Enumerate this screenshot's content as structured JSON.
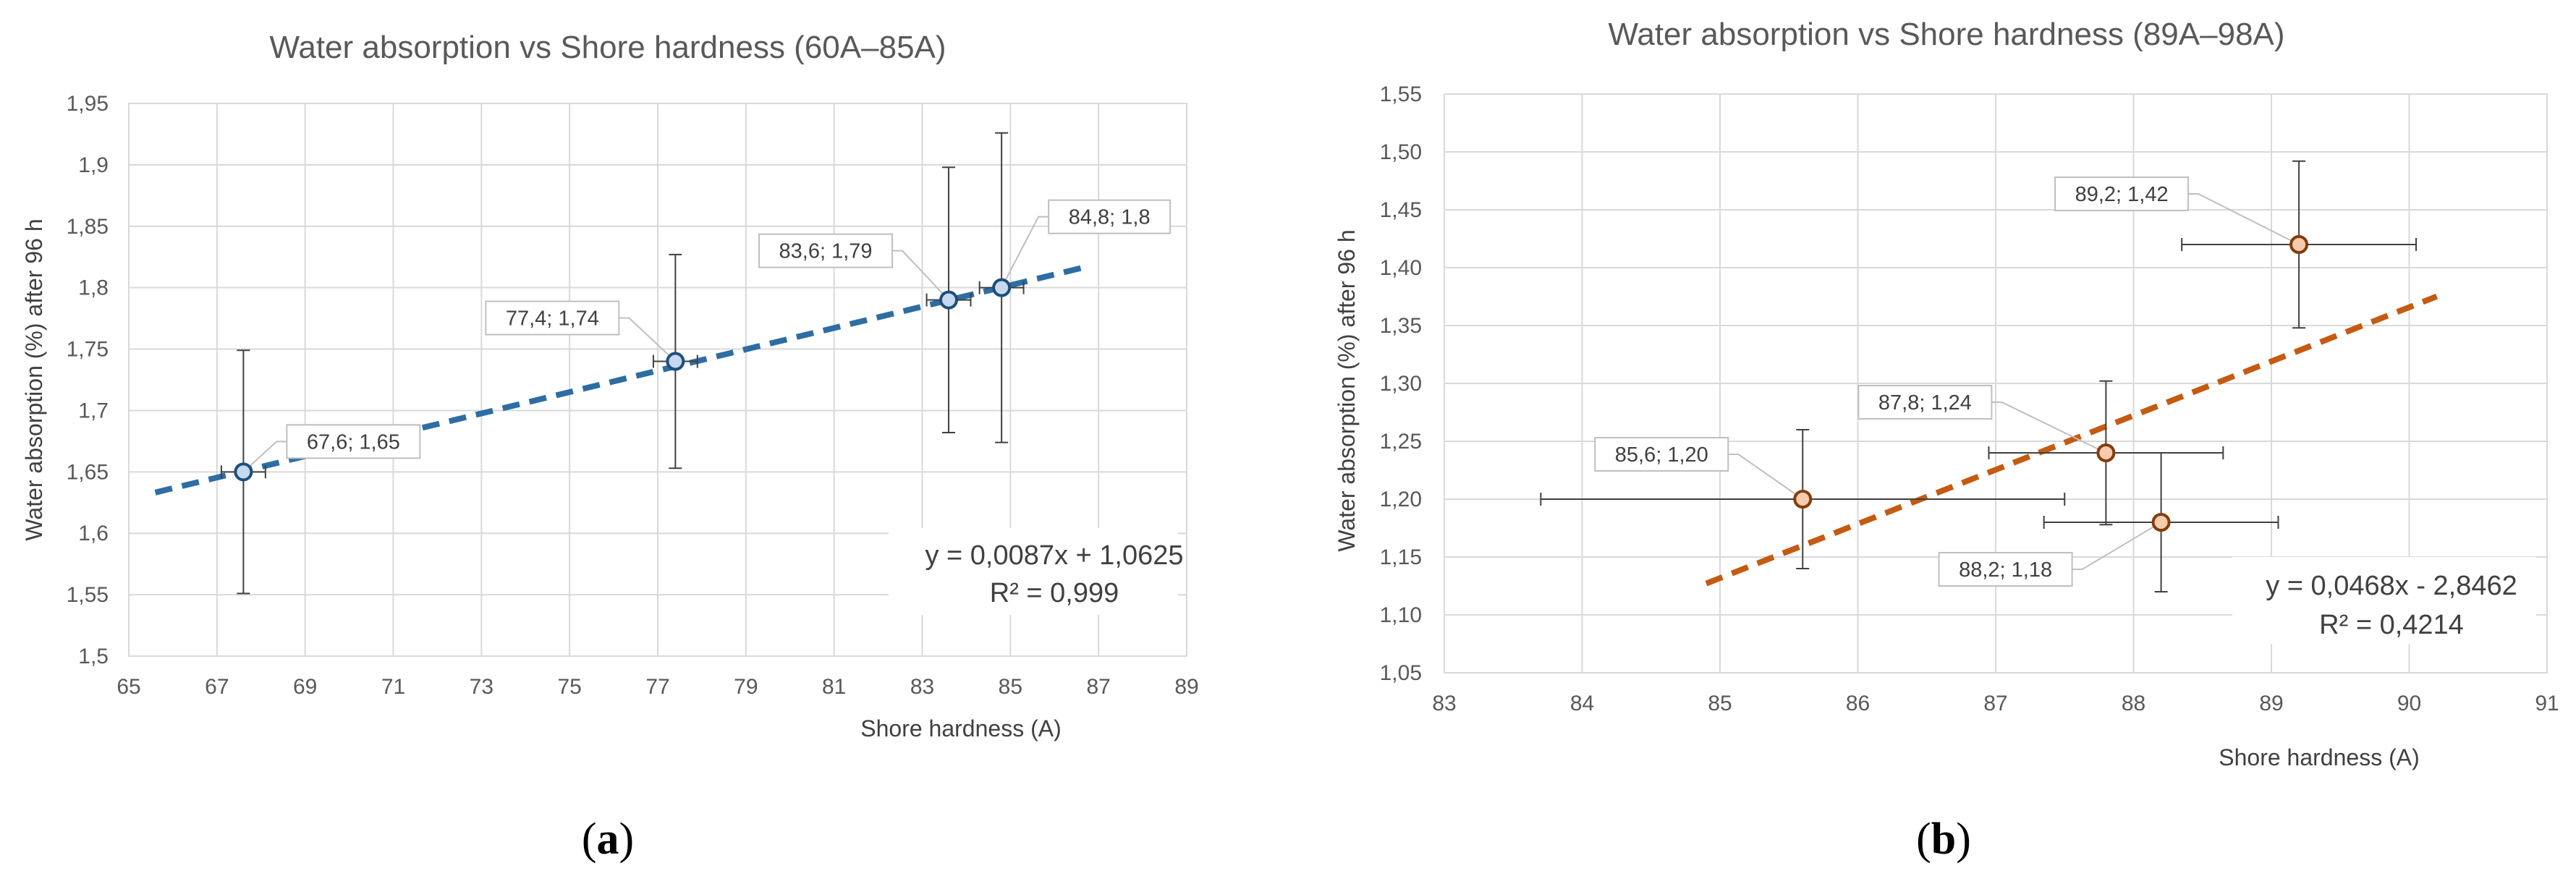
{
  "chart_data": [
    {
      "type": "scatter",
      "caption_letter": "a",
      "title": "Water absorption vs Shore hardness (60A–85A)",
      "xlabel": "Shore hardness (A)",
      "ylabel": "Water absorption (%) after 96 h",
      "xlim": [
        65,
        89
      ],
      "ylim": [
        1.5,
        1.95
      ],
      "x_ticks": [
        "65",
        "67",
        "69",
        "71",
        "73",
        "75",
        "77",
        "79",
        "81",
        "83",
        "85",
        "87",
        "89"
      ],
      "y_ticks": [
        "1,5",
        "1,55",
        "1,6",
        "1,65",
        "1,7",
        "1,75",
        "1,8",
        "1,85",
        "1,9",
        "1,95"
      ],
      "grid": true,
      "points": [
        {
          "x": 67.6,
          "y": 1.65,
          "label": "67,6; 1,65",
          "x_err": 0.5,
          "y_err": 0.099
        },
        {
          "x": 77.4,
          "y": 1.74,
          "label": "77,4; 1,74",
          "x_err": 0.5,
          "y_err": 0.087
        },
        {
          "x": 83.6,
          "y": 1.79,
          "label": "83,6; 1,79",
          "x_err": 0.5,
          "y_err": 0.108
        },
        {
          "x": 84.8,
          "y": 1.8,
          "label": "84,8; 1,8",
          "x_err": 0.5,
          "y_err": 0.126
        }
      ],
      "trendline": {
        "slope": 0.0087,
        "intercept": 1.0625,
        "x_range": [
          65.6,
          86.8
        ],
        "equation": "y = 0,0087x + 1,0625",
        "r2": "R² = 0,999"
      },
      "colors": {
        "marker_fill": "#c5d9f1",
        "marker_edge": "#1f4e79",
        "trend": "#2e6da4"
      }
    },
    {
      "type": "scatter",
      "caption_letter": "b",
      "title": "Water absorption vs Shore hardness (89A–98A)",
      "xlabel": "Shore hardness (A)",
      "ylabel": "Water absorption (%) after 96 h",
      "xlim": [
        83,
        91
      ],
      "ylim": [
        1.05,
        1.55
      ],
      "x_ticks": [
        "83",
        "84",
        "85",
        "86",
        "87",
        "88",
        "89",
        "90",
        "91"
      ],
      "y_ticks": [
        "1,05",
        "1,10",
        "1,15",
        "1,20",
        "1,25",
        "1,30",
        "1,35",
        "1,40",
        "1,45",
        "1,50",
        "1,55"
      ],
      "grid": true,
      "points": [
        {
          "x": 85.6,
          "y": 1.2,
          "label": "85,6; 1,20",
          "x_err": 1.9,
          "y_err": 0.06
        },
        {
          "x": 87.8,
          "y": 1.24,
          "label": "87,8; 1,24",
          "x_err": 0.85,
          "y_err": 0.062
        },
        {
          "x": 88.2,
          "y": 1.18,
          "label": "88,2; 1,18",
          "x_err": 0.85,
          "y_err": 0.06
        },
        {
          "x": 89.2,
          "y": 1.42,
          "label": "89,2; 1,42",
          "x_err": 0.85,
          "y_err": 0.072
        }
      ],
      "trendline": {
        "slope": 0.0468,
        "intercept": -2.8462,
        "x_range": [
          84.9,
          90.2
        ],
        "equation": "y = 0,0468x - 2,8462",
        "r2": "R² = 0,4214"
      },
      "colors": {
        "marker_fill": "#f8cbad",
        "marker_edge": "#843c0c",
        "trend": "#c55a11"
      }
    }
  ]
}
